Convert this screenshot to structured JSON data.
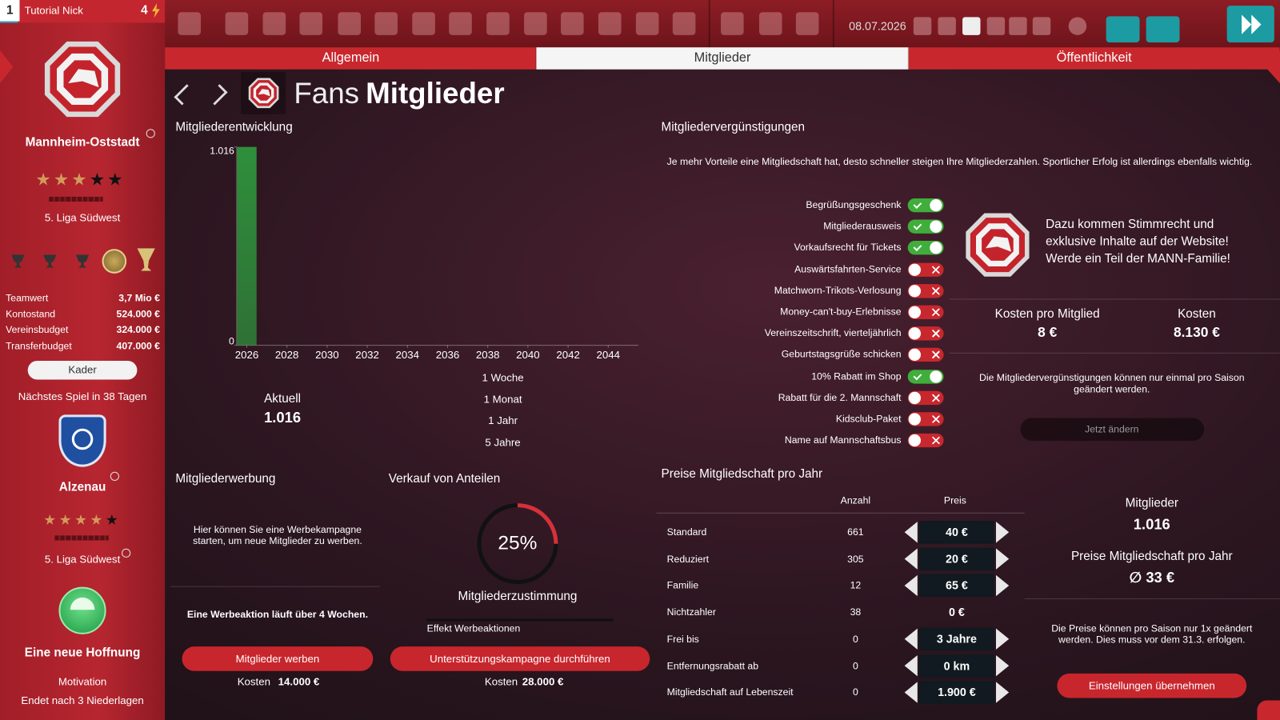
{
  "top_bar": {
    "rank": "1",
    "manager": "Tutorial Nick",
    "points": "4",
    "date": "08.07.2026"
  },
  "tabs": {
    "items": [
      "Allgemein",
      "Mitglieder",
      "Öffentlichkeit"
    ],
    "active": 1
  },
  "header": {
    "section": "Fans",
    "title": "Mitglieder"
  },
  "sidebar": {
    "club": {
      "name": "Mannheim-Oststadt",
      "stars": 3,
      "league": "5. Liga Südwest"
    },
    "finances": [
      {
        "label": "Teamwert",
        "value": "3,7 Mio €"
      },
      {
        "label": "Kontostand",
        "value": "524.000 €"
      },
      {
        "label": "Vereinsbudget",
        "value": "324.000 €"
      },
      {
        "label": "Transferbudget",
        "value": "407.000 €"
      }
    ],
    "squad_button": "Kader",
    "next_match": "Nächstes Spiel in 38 Tagen",
    "opponent": {
      "name": "Alzenau",
      "stars": 4,
      "league": "5. Liga Südwest"
    },
    "motivation": {
      "title": "Eine neue Hoffnung",
      "label": "Motivation",
      "note": "Endet nach 3 Niederlagen"
    }
  },
  "chart_data": {
    "type": "bar",
    "title": "Mitgliederentwicklung",
    "x": [
      2026
    ],
    "values": [
      1016
    ],
    "color": "#2f8f3c",
    "xlim": [
      2025.5,
      2045.5
    ],
    "xticks": [
      2026,
      2028,
      2030,
      2032,
      2034,
      2036,
      2038,
      2040,
      2042,
      2044
    ],
    "ylim": [
      0,
      1016
    ],
    "yticks": [
      0,
      {
        "value": 1016,
        "label": "1.016"
      }
    ]
  },
  "member_chart": {
    "current_label": "Aktuell",
    "current_value": "1.016",
    "periods": [
      "1 Woche",
      "1 Monat",
      "1 Jahr",
      "5 Jahre"
    ]
  },
  "benefits": {
    "title": "Mitgliedervergünstigungen",
    "intro": "Je mehr Vorteile eine Mitgliedschaft hat, desto schneller steigen Ihre Mitgliederzahlen. Sportlicher Erfolg ist allerdings ebenfalls wichtig.",
    "items": [
      {
        "label": "Begrüßungsgeschenk",
        "enabled": true
      },
      {
        "label": "Mitgliederausweis",
        "enabled": true
      },
      {
        "label": "Vorkaufsrecht für Tickets",
        "enabled": true
      },
      {
        "label": "Auswärtsfahrten-Service",
        "enabled": false
      },
      {
        "label": "Matchworn-Trikots-Verlosung",
        "enabled": false
      },
      {
        "label": "Money-can't-buy-Erlebnisse",
        "enabled": false
      },
      {
        "label": "Vereinszeitschrift, vierteljährlich",
        "enabled": false
      },
      {
        "label": "Geburtstagsgrüße schicken",
        "enabled": false
      },
      {
        "label": "10% Rabatt im Shop",
        "enabled": true
      },
      {
        "label": "Rabatt für die 2. Mannschaft",
        "enabled": false
      },
      {
        "label": "Kidsclub-Paket",
        "enabled": false
      },
      {
        "label": "Name auf Mannschaftsbus",
        "enabled": false
      }
    ],
    "promo": "Dazu kommen Stimmrecht und exklusive Inhalte auf der Website! Werde ein Teil der MANN-Familie!",
    "cost_per_member_label": "Kosten pro Mitglied",
    "cost_per_member": "8 €",
    "cost_label": "Kosten",
    "cost": "8.130 €",
    "note": "Die Mitgliedervergünstigungen können nur einmal pro Saison geändert werden.",
    "button": "Jetzt ändern"
  },
  "recruitment": {
    "title": "Mitgliederwerbung",
    "text": "Hier können Sie eine Werbekampagne starten, um neue Mitglieder zu werben.",
    "duration": "Eine Werbeaktion läuft über 4 Wochen.",
    "button": "Mitglieder werben",
    "cost_label": "Kosten",
    "cost": "14.000 €"
  },
  "shares": {
    "title": "Verkauf von Anteilen",
    "approval": 25,
    "approval_label": "25%",
    "approval_caption": "Mitgliederzustimmung",
    "effect_label": "Effekt Werbeaktionen",
    "button": "Unterstützungskampagne durchführen",
    "cost_label": "Kosten",
    "cost": "28.000 €"
  },
  "prices": {
    "title": "Preise Mitgliedschaft pro Jahr",
    "columns": [
      "Anzahl",
      "Preis"
    ],
    "rows": [
      {
        "name": "Standard",
        "count": "661",
        "price": "40 €",
        "adjustable": true
      },
      {
        "name": "Reduziert",
        "count": "305",
        "price": "20 €",
        "adjustable": true
      },
      {
        "name": "Familie",
        "count": "12",
        "price": "65 €",
        "adjustable": true
      },
      {
        "name": "Nichtzahler",
        "count": "38",
        "price": "0 €",
        "adjustable": false
      },
      {
        "name": "Frei bis",
        "count": "0",
        "price": "3 Jahre",
        "adjustable": true
      },
      {
        "name": "Entfernungsrabatt ab",
        "count": "0",
        "price": "0 km",
        "adjustable": true
      },
      {
        "name": "Mitgliedschaft auf Lebenszeit",
        "count": "0",
        "price": "1.900 €",
        "adjustable": true
      }
    ],
    "summary": {
      "members_label": "Mitglieder",
      "members": "1.016",
      "avg_label": "Preise Mitgliedschaft pro Jahr",
      "avg": "∅ 33 €",
      "note": "Die Preise können pro Saison nur 1x geändert werden. Dies muss vor dem 31.3. erfolgen.",
      "button": "Einstellungen übernehmen"
    }
  }
}
